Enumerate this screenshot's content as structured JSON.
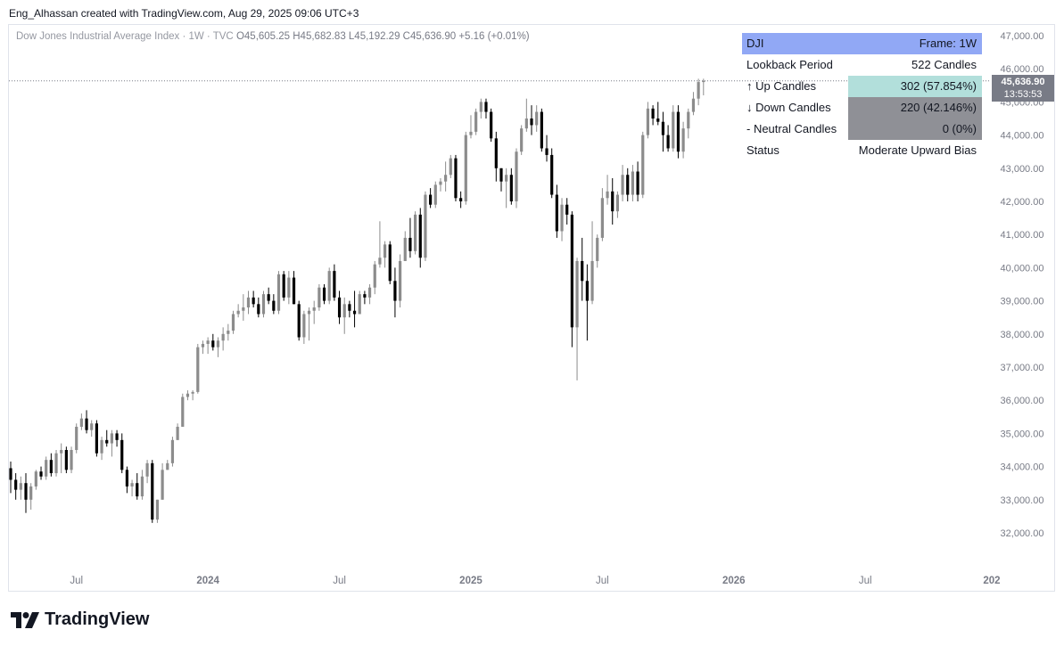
{
  "credit": "Eng_Alhassan created with TradingView.com, Aug 29, 2025 09:06 UTC+3",
  "legend": {
    "title": "Dow Jones Industrial Average Index · 1W · TVC",
    "ohlc": "O45,605.25 H45,682.83 L45,192.29 C45,636.90",
    "change": "+5.16 (+0.01%)"
  },
  "price_tag": {
    "price": "45,636.90",
    "countdown": "13:53:53"
  },
  "table": {
    "header_left": "DJI",
    "header_right": "Frame: 1W",
    "rows": [
      {
        "label": "Lookback Period",
        "value": "522 Candles"
      },
      {
        "label": "↑ Up Candles",
        "value": "302 (57.854%)"
      },
      {
        "label": "↓ Down Candles",
        "value": "220 (42.146%)"
      },
      {
        "label": "- Neutral Candles",
        "value": "0 (0%)"
      },
      {
        "label": "Status",
        "value": "Moderate Upward Bias"
      }
    ]
  },
  "logo": {
    "text": "TradingView"
  },
  "colors": {
    "up": "#8c8c8c",
    "down": "#000000",
    "last_price": "#787b86",
    "header": "#91a8f5",
    "up_cell": "#b2dfdb",
    "down_cell": "#8f9096"
  },
  "chart_data": {
    "type": "candlestick",
    "title": "Dow Jones Industrial Average Index · 1W · TVC",
    "xlabel": "",
    "ylabel": "",
    "ylim": [
      31000,
      47300
    ],
    "yticks": [
      32000,
      33000,
      34000,
      35000,
      36000,
      37000,
      38000,
      39000,
      40000,
      41000,
      42000,
      43000,
      44000,
      45000,
      46000,
      47000
    ],
    "ytick_labels": [
      "32,000.00",
      "33,000.00",
      "34,000.00",
      "35,000.00",
      "36,000.00",
      "37,000.00",
      "38,000.00",
      "39,000.00",
      "40,000.00",
      "41,000.00",
      "42,000.00",
      "43,000.00",
      "44,000.00",
      "45,000.00",
      "46,000.00",
      "47,000.00"
    ],
    "xticks": [
      {
        "label": "Jul",
        "index": 13
      },
      {
        "label": "2024",
        "index": 39
      },
      {
        "label": "Jul",
        "index": 65
      },
      {
        "label": "2025",
        "index": 91
      },
      {
        "label": "Jul",
        "index": 117
      },
      {
        "label": "2026",
        "index": 143
      },
      {
        "label": "Jul",
        "index": 169
      },
      {
        "label": "202",
        "index": 194
      }
    ],
    "last_price": 45636.9,
    "candles": [
      {
        "o": 33950,
        "h": 34150,
        "l": 33200,
        "c": 33600
      },
      {
        "o": 33600,
        "h": 33800,
        "l": 33000,
        "c": 33300
      },
      {
        "o": 33300,
        "h": 33700,
        "l": 33000,
        "c": 33500
      },
      {
        "o": 33500,
        "h": 33800,
        "l": 32600,
        "c": 33000
      },
      {
        "o": 33000,
        "h": 33500,
        "l": 32700,
        "c": 33400
      },
      {
        "o": 33400,
        "h": 33900,
        "l": 33300,
        "c": 33850
      },
      {
        "o": 33850,
        "h": 34000,
        "l": 33600,
        "c": 33700
      },
      {
        "o": 33700,
        "h": 34300,
        "l": 33600,
        "c": 34200
      },
      {
        "o": 34200,
        "h": 34400,
        "l": 33700,
        "c": 33800
      },
      {
        "o": 33800,
        "h": 34500,
        "l": 33700,
        "c": 34400
      },
      {
        "o": 34400,
        "h": 34700,
        "l": 33800,
        "c": 34500
      },
      {
        "o": 34500,
        "h": 34600,
        "l": 33800,
        "c": 33900
      },
      {
        "o": 33900,
        "h": 34600,
        "l": 33800,
        "c": 34500
      },
      {
        "o": 34500,
        "h": 35300,
        "l": 34400,
        "c": 35200
      },
      {
        "o": 35200,
        "h": 35600,
        "l": 35100,
        "c": 35450
      },
      {
        "o": 35450,
        "h": 35700,
        "l": 35000,
        "c": 35100
      },
      {
        "o": 35100,
        "h": 35400,
        "l": 34900,
        "c": 35300
      },
      {
        "o": 35300,
        "h": 35400,
        "l": 34300,
        "c": 34400
      },
      {
        "o": 34400,
        "h": 34900,
        "l": 34200,
        "c": 34800
      },
      {
        "o": 34800,
        "h": 35100,
        "l": 34600,
        "c": 34700
      },
      {
        "o": 34700,
        "h": 35100,
        "l": 34300,
        "c": 35000
      },
      {
        "o": 35000,
        "h": 35100,
        "l": 34600,
        "c": 34800
      },
      {
        "o": 34800,
        "h": 35000,
        "l": 33800,
        "c": 33900
      },
      {
        "o": 33900,
        "h": 34000,
        "l": 33200,
        "c": 33400
      },
      {
        "o": 33400,
        "h": 33600,
        "l": 33100,
        "c": 33500
      },
      {
        "o": 33500,
        "h": 33800,
        "l": 33000,
        "c": 33100
      },
      {
        "o": 33100,
        "h": 33900,
        "l": 33000,
        "c": 33700
      },
      {
        "o": 33700,
        "h": 34200,
        "l": 33500,
        "c": 34100
      },
      {
        "o": 34100,
        "h": 34200,
        "l": 32300,
        "c": 32400
      },
      {
        "o": 32400,
        "h": 33000,
        "l": 32300,
        "c": 33000
      },
      {
        "o": 33000,
        "h": 34100,
        "l": 33000,
        "c": 33900
      },
      {
        "o": 33900,
        "h": 34200,
        "l": 33900,
        "c": 34100
      },
      {
        "o": 34100,
        "h": 34900,
        "l": 34000,
        "c": 34800
      },
      {
        "o": 34800,
        "h": 35300,
        "l": 34800,
        "c": 35200
      },
      {
        "o": 35200,
        "h": 36200,
        "l": 35200,
        "c": 36100
      },
      {
        "o": 36100,
        "h": 36300,
        "l": 36000,
        "c": 36200
      },
      {
        "o": 36200,
        "h": 36300,
        "l": 36000,
        "c": 36250
      },
      {
        "o": 36250,
        "h": 37700,
        "l": 36200,
        "c": 37600
      },
      {
        "o": 37600,
        "h": 37800,
        "l": 37400,
        "c": 37700
      },
      {
        "o": 37700,
        "h": 37900,
        "l": 37400,
        "c": 37800
      },
      {
        "o": 37800,
        "h": 38000,
        "l": 37500,
        "c": 37600
      },
      {
        "o": 37600,
        "h": 37900,
        "l": 37300,
        "c": 37800
      },
      {
        "o": 37800,
        "h": 38200,
        "l": 37500,
        "c": 38000
      },
      {
        "o": 38000,
        "h": 38300,
        "l": 37800,
        "c": 38100
      },
      {
        "o": 38100,
        "h": 38700,
        "l": 38000,
        "c": 38600
      },
      {
        "o": 38600,
        "h": 38900,
        "l": 38500,
        "c": 38700
      },
      {
        "o": 38700,
        "h": 39200,
        "l": 38400,
        "c": 38800
      },
      {
        "o": 38800,
        "h": 39300,
        "l": 38600,
        "c": 39100
      },
      {
        "o": 39100,
        "h": 39300,
        "l": 38800,
        "c": 38900
      },
      {
        "o": 38900,
        "h": 39100,
        "l": 38500,
        "c": 38600
      },
      {
        "o": 38600,
        "h": 39300,
        "l": 38500,
        "c": 39200
      },
      {
        "o": 39200,
        "h": 39400,
        "l": 38900,
        "c": 39000
      },
      {
        "o": 39000,
        "h": 39200,
        "l": 38600,
        "c": 38700
      },
      {
        "o": 38700,
        "h": 39900,
        "l": 38600,
        "c": 39800
      },
      {
        "o": 39800,
        "h": 39900,
        "l": 39000,
        "c": 39100
      },
      {
        "o": 39100,
        "h": 39900,
        "l": 38900,
        "c": 39700
      },
      {
        "o": 39700,
        "h": 39900,
        "l": 38900,
        "c": 38900
      },
      {
        "o": 38900,
        "h": 39000,
        "l": 37800,
        "c": 37900
      },
      {
        "o": 37900,
        "h": 38700,
        "l": 37700,
        "c": 38600
      },
      {
        "o": 38600,
        "h": 38800,
        "l": 37800,
        "c": 38700
      },
      {
        "o": 38700,
        "h": 39000,
        "l": 38300,
        "c": 38800
      },
      {
        "o": 38800,
        "h": 39500,
        "l": 38700,
        "c": 39400
      },
      {
        "o": 39400,
        "h": 39500,
        "l": 38900,
        "c": 39000
      },
      {
        "o": 39000,
        "h": 40000,
        "l": 38900,
        "c": 39900
      },
      {
        "o": 39900,
        "h": 40100,
        "l": 39000,
        "c": 39100
      },
      {
        "o": 39100,
        "h": 39300,
        "l": 38300,
        "c": 38500
      },
      {
        "o": 38500,
        "h": 39100,
        "l": 38000,
        "c": 38900
      },
      {
        "o": 38900,
        "h": 39000,
        "l": 38500,
        "c": 38700
      },
      {
        "o": 38700,
        "h": 39300,
        "l": 38200,
        "c": 38600
      },
      {
        "o": 38600,
        "h": 39300,
        "l": 38600,
        "c": 39200
      },
      {
        "o": 39200,
        "h": 39300,
        "l": 38900,
        "c": 39100
      },
      {
        "o": 39100,
        "h": 39500,
        "l": 38900,
        "c": 39400
      },
      {
        "o": 39400,
        "h": 40200,
        "l": 39200,
        "c": 40100
      },
      {
        "o": 40100,
        "h": 41400,
        "l": 40000,
        "c": 40300
      },
      {
        "o": 40300,
        "h": 40800,
        "l": 40000,
        "c": 40700
      },
      {
        "o": 40700,
        "h": 40800,
        "l": 39500,
        "c": 39600
      },
      {
        "o": 39600,
        "h": 40000,
        "l": 38500,
        "c": 39000
      },
      {
        "o": 39000,
        "h": 40400,
        "l": 38800,
        "c": 40200
      },
      {
        "o": 40200,
        "h": 41100,
        "l": 40200,
        "c": 40900
      },
      {
        "o": 40900,
        "h": 41500,
        "l": 40300,
        "c": 40500
      },
      {
        "o": 40500,
        "h": 41700,
        "l": 40400,
        "c": 41600
      },
      {
        "o": 41600,
        "h": 41800,
        "l": 40000,
        "c": 40300
      },
      {
        "o": 40300,
        "h": 42300,
        "l": 40200,
        "c": 42200
      },
      {
        "o": 42200,
        "h": 42400,
        "l": 41800,
        "c": 41900
      },
      {
        "o": 41900,
        "h": 42600,
        "l": 41800,
        "c": 42500
      },
      {
        "o": 42500,
        "h": 42700,
        "l": 42300,
        "c": 42600
      },
      {
        "o": 42600,
        "h": 43200,
        "l": 42300,
        "c": 42800
      },
      {
        "o": 42800,
        "h": 43400,
        "l": 42700,
        "c": 43300
      },
      {
        "o": 43300,
        "h": 43400,
        "l": 42000,
        "c": 42100
      },
      {
        "o": 42100,
        "h": 42300,
        "l": 41800,
        "c": 42000
      },
      {
        "o": 42000,
        "h": 44100,
        "l": 41900,
        "c": 44000
      },
      {
        "o": 44000,
        "h": 44600,
        "l": 43900,
        "c": 44100
      },
      {
        "o": 44100,
        "h": 44800,
        "l": 44000,
        "c": 44700
      },
      {
        "o": 44700,
        "h": 45100,
        "l": 44500,
        "c": 45000
      },
      {
        "o": 45000,
        "h": 45100,
        "l": 44500,
        "c": 44700
      },
      {
        "o": 44700,
        "h": 44800,
        "l": 43800,
        "c": 43900
      },
      {
        "o": 43900,
        "h": 44100,
        "l": 42600,
        "c": 43000
      },
      {
        "o": 43000,
        "h": 43000,
        "l": 42300,
        "c": 42600
      },
      {
        "o": 42600,
        "h": 43000,
        "l": 41800,
        "c": 42800
      },
      {
        "o": 42800,
        "h": 43000,
        "l": 41900,
        "c": 42000
      },
      {
        "o": 42000,
        "h": 43600,
        "l": 41800,
        "c": 43500
      },
      {
        "o": 43500,
        "h": 44300,
        "l": 43400,
        "c": 44200
      },
      {
        "o": 44200,
        "h": 45100,
        "l": 44100,
        "c": 44500
      },
      {
        "o": 44500,
        "h": 44900,
        "l": 44000,
        "c": 44300
      },
      {
        "o": 44300,
        "h": 44900,
        "l": 44100,
        "c": 44700
      },
      {
        "o": 44700,
        "h": 44800,
        "l": 43500,
        "c": 43600
      },
      {
        "o": 43600,
        "h": 44000,
        "l": 43200,
        "c": 43400
      },
      {
        "o": 43400,
        "h": 43600,
        "l": 42100,
        "c": 42200
      },
      {
        "o": 42200,
        "h": 42500,
        "l": 40900,
        "c": 41100
      },
      {
        "o": 41100,
        "h": 42100,
        "l": 40800,
        "c": 41900
      },
      {
        "o": 41900,
        "h": 42100,
        "l": 41300,
        "c": 41600
      },
      {
        "o": 41600,
        "h": 41700,
        "l": 37600,
        "c": 38200
      },
      {
        "o": 38200,
        "h": 40300,
        "l": 36600,
        "c": 40200
      },
      {
        "o": 40200,
        "h": 40900,
        "l": 39000,
        "c": 39600
      },
      {
        "o": 39600,
        "h": 40100,
        "l": 37800,
        "c": 39000
      },
      {
        "o": 39000,
        "h": 41400,
        "l": 38900,
        "c": 40200
      },
      {
        "o": 40200,
        "h": 41000,
        "l": 40000,
        "c": 40900
      },
      {
        "o": 40900,
        "h": 42400,
        "l": 40800,
        "c": 42100
      },
      {
        "o": 42100,
        "h": 42800,
        "l": 41900,
        "c": 42300
      },
      {
        "o": 42300,
        "h": 42700,
        "l": 41300,
        "c": 41700
      },
      {
        "o": 41700,
        "h": 42300,
        "l": 41500,
        "c": 42200
      },
      {
        "o": 42200,
        "h": 43100,
        "l": 42000,
        "c": 42800
      },
      {
        "o": 42800,
        "h": 43000,
        "l": 42000,
        "c": 42200
      },
      {
        "o": 42200,
        "h": 43100,
        "l": 42000,
        "c": 42900
      },
      {
        "o": 42900,
        "h": 43200,
        "l": 42000,
        "c": 42200
      },
      {
        "o": 42200,
        "h": 44100,
        "l": 42100,
        "c": 44000
      },
      {
        "o": 44000,
        "h": 45000,
        "l": 43900,
        "c": 44800
      },
      {
        "o": 44800,
        "h": 44900,
        "l": 44300,
        "c": 44500
      },
      {
        "o": 44500,
        "h": 45000,
        "l": 44300,
        "c": 44400
      },
      {
        "o": 44400,
        "h": 44700,
        "l": 43500,
        "c": 44000
      },
      {
        "o": 44000,
        "h": 44300,
        "l": 43500,
        "c": 43600
      },
      {
        "o": 43600,
        "h": 44900,
        "l": 43500,
        "c": 44700
      },
      {
        "o": 44700,
        "h": 44900,
        "l": 43300,
        "c": 43500
      },
      {
        "o": 43500,
        "h": 44400,
        "l": 43300,
        "c": 44200
      },
      {
        "o": 44200,
        "h": 44800,
        "l": 43900,
        "c": 44700
      },
      {
        "o": 44700,
        "h": 45300,
        "l": 44600,
        "c": 45100
      },
      {
        "o": 45100,
        "h": 45700,
        "l": 44900,
        "c": 45600
      },
      {
        "o": 45600,
        "h": 45700,
        "l": 45200,
        "c": 45636.9
      }
    ]
  }
}
